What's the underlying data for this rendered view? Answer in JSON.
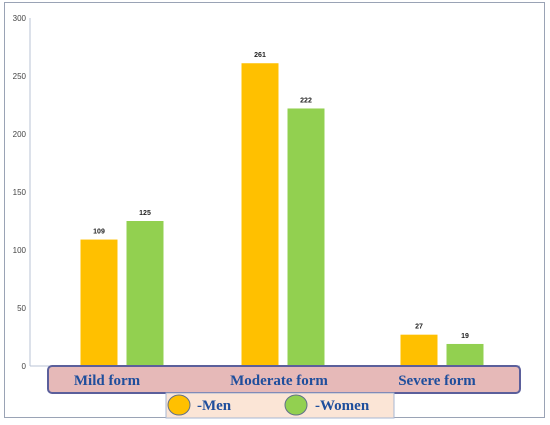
{
  "chart_data": {
    "type": "bar",
    "categories": [
      "Mild form",
      "Moderate form",
      "Severe form"
    ],
    "series": [
      {
        "name": "-Men",
        "values": [
          109,
          261,
          27
        ],
        "color": "#ffc000"
      },
      {
        "name": "-Women",
        "values": [
          125,
          222,
          19
        ],
        "color": "#92d050"
      }
    ],
    "ylim": [
      0,
      300
    ],
    "yticks": [
      0,
      50,
      100,
      150,
      200,
      250,
      300
    ],
    "grid": false,
    "legend_placement": "bottom",
    "category_band_color": "#e6b9b8",
    "legend_band_color": "#fbe5d6",
    "band_border_color": "#5b5f9b"
  }
}
